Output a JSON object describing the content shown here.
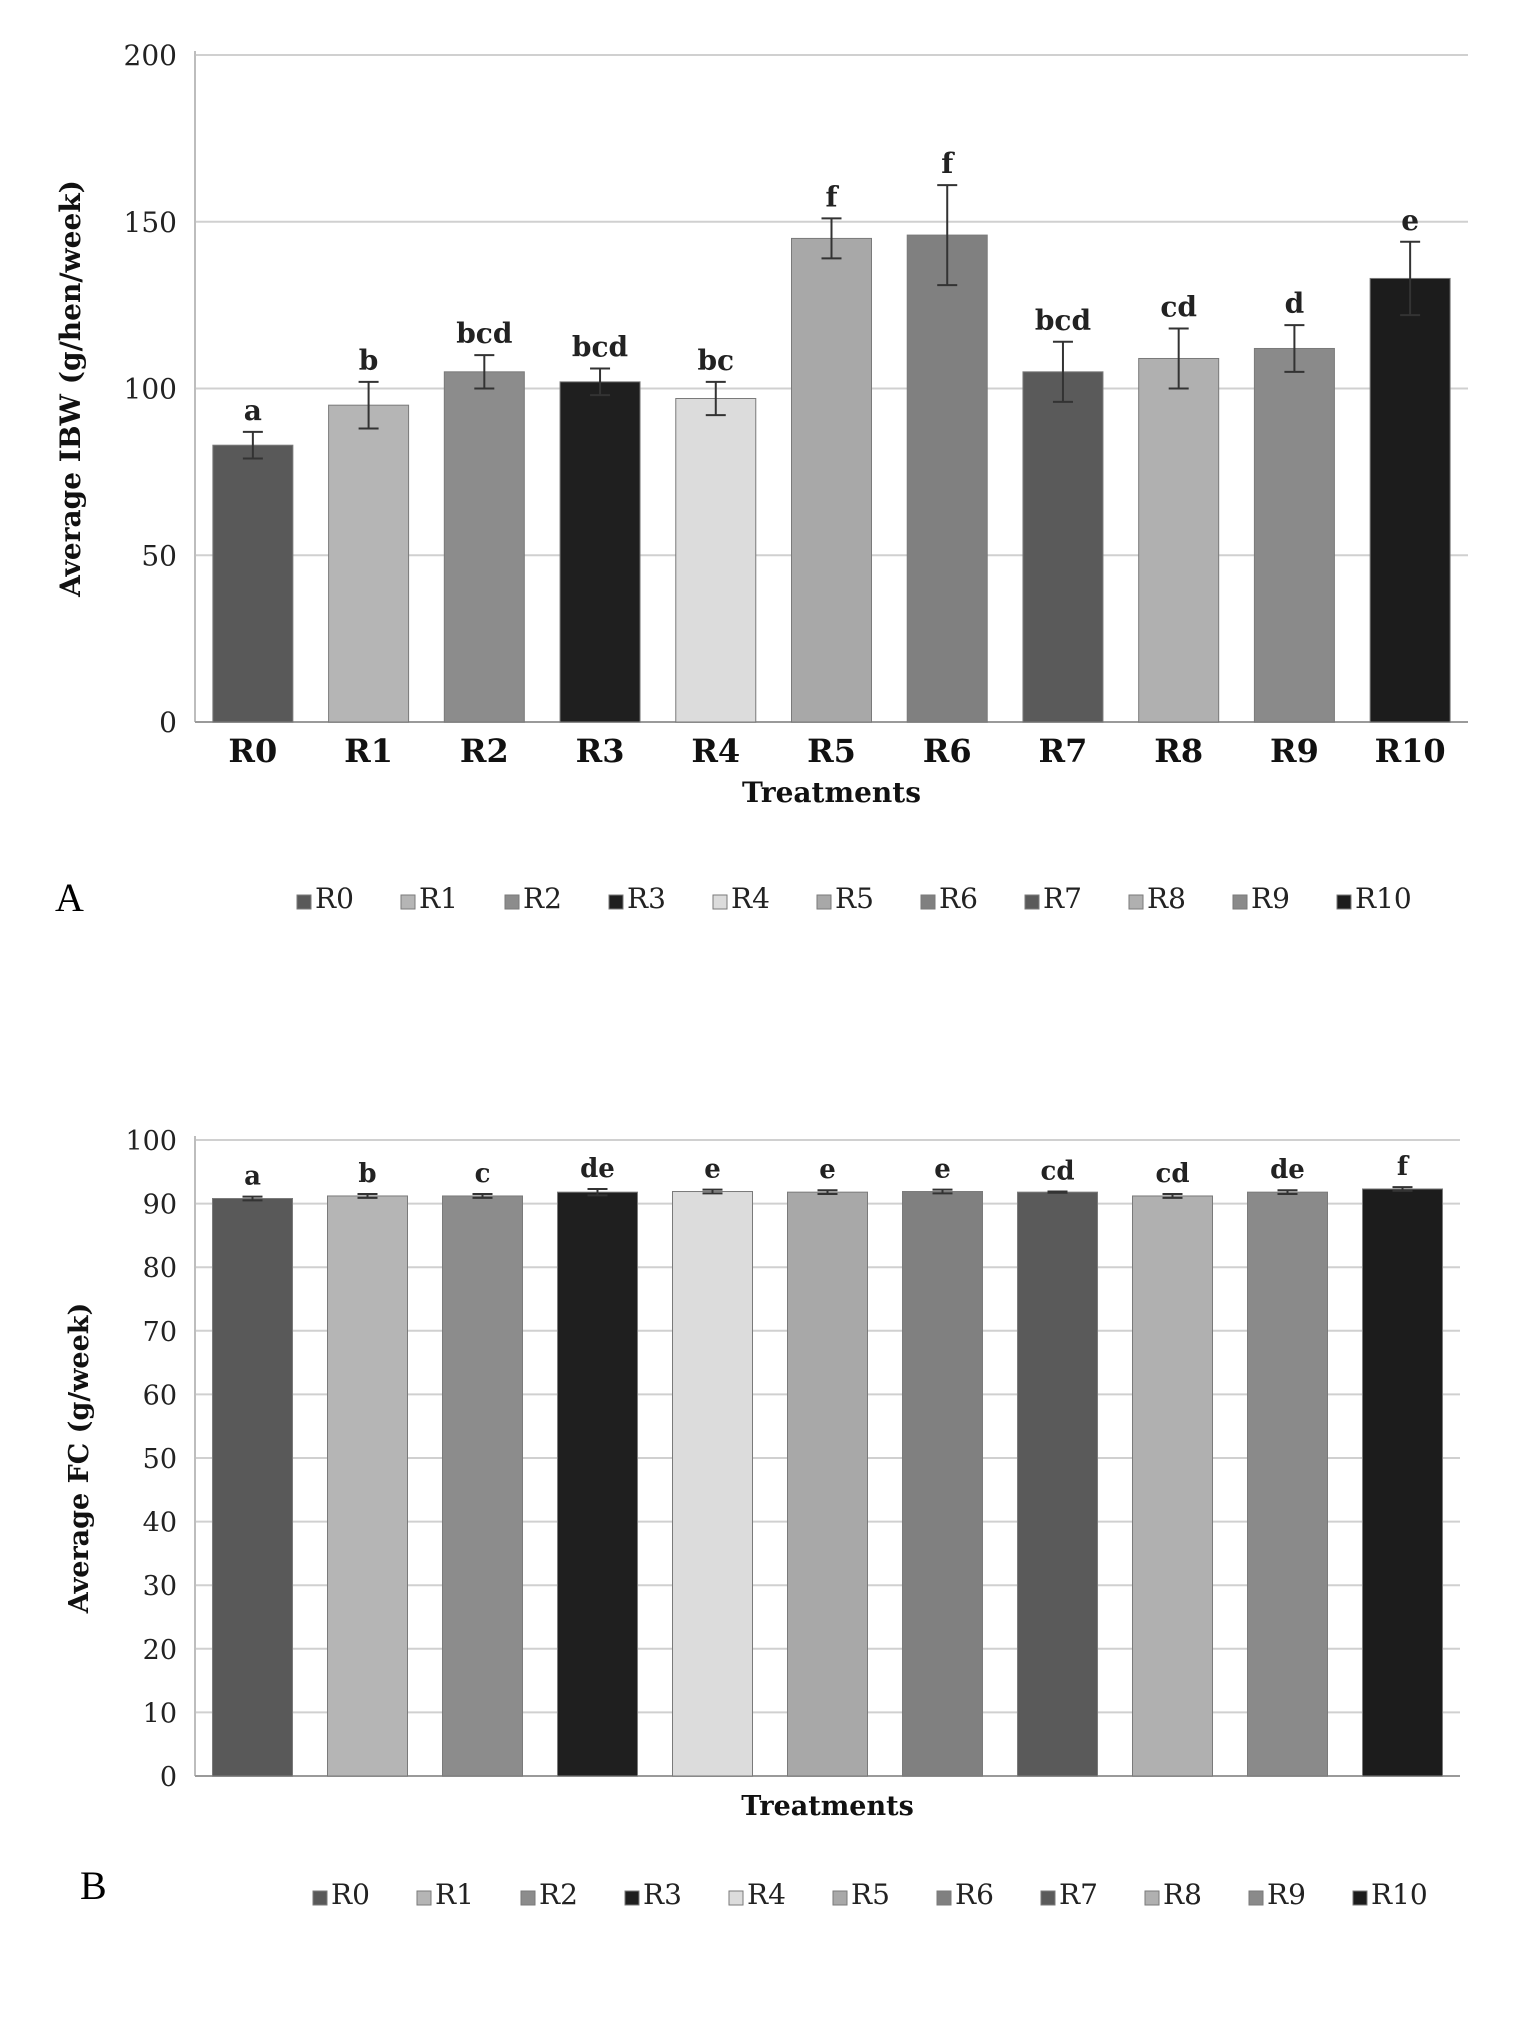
{
  "panels": [
    {
      "letter": "A",
      "chart_data": {
        "type": "bar",
        "categories": [
          "R0",
          "R1",
          "R2",
          "R3",
          "R4",
          "R5",
          "R6",
          "R7",
          "R8",
          "R9",
          "R10"
        ],
        "values": [
          83,
          95,
          105,
          102,
          97,
          145,
          146,
          105,
          109,
          112,
          133
        ],
        "errors": [
          4,
          7,
          5,
          4,
          5,
          6,
          15,
          9,
          9,
          7,
          11
        ],
        "significance_letters": [
          "a",
          "b",
          "bcd",
          "bcd",
          "bc",
          "f",
          "f",
          "bcd",
          "cd",
          "d",
          "e"
        ],
        "xlabel": "Treatments",
        "ylabel": "Average IBW (g/hen/week)",
        "ylim": [
          0,
          200
        ],
        "yticks": [
          0,
          50,
          100,
          150,
          200
        ],
        "grid": true,
        "legend": [
          "R0",
          "R1",
          "R2",
          "R3",
          "R4",
          "R5",
          "R6",
          "R7",
          "R8",
          "R9",
          "R10"
        ],
        "legend_position": "bottom",
        "colors": [
          "#595959",
          "#b5b5b5",
          "#8c8c8c",
          "#1f1f1f",
          "#dcdcdc",
          "#a8a8a8",
          "#808080",
          "#5a5a5a",
          "#b0b0b0",
          "#8a8a8a",
          "#1c1c1c"
        ]
      }
    },
    {
      "letter": "B",
      "chart_data": {
        "type": "bar",
        "categories": [
          "R0",
          "R1",
          "R2",
          "R3",
          "R4",
          "R5",
          "R6",
          "R7",
          "R8",
          "R9",
          "R10"
        ],
        "values": [
          90.8,
          91.2,
          91.2,
          91.8,
          91.9,
          91.8,
          91.9,
          91.8,
          91.2,
          91.8,
          92.3
        ],
        "errors": [
          0.3,
          0.3,
          0.3,
          0.5,
          0.3,
          0.3,
          0.3,
          0.1,
          0.3,
          0.3,
          0.3
        ],
        "significance_letters": [
          "a",
          "b",
          "c",
          "de",
          "e",
          "e",
          "e",
          "cd",
          "cd",
          "de",
          "f"
        ],
        "xlabel": "Treatments",
        "ylabel": "Average FC  (g/week)",
        "ylim": [
          0,
          100
        ],
        "yticks": [
          0,
          10,
          20,
          30,
          40,
          50,
          60,
          70,
          80,
          90,
          100
        ],
        "grid": true,
        "show_category_labels": false,
        "legend": [
          "R0",
          "R1",
          "R2",
          "R3",
          "R4",
          "R5",
          "R6",
          "R7",
          "R8",
          "R9",
          "R10"
        ],
        "legend_position": "bottom",
        "colors": [
          "#595959",
          "#b5b5b5",
          "#8c8c8c",
          "#1f1f1f",
          "#dcdcdc",
          "#a8a8a8",
          "#808080",
          "#5a5a5a",
          "#b0b0b0",
          "#8a8a8a",
          "#1c1c1c"
        ]
      }
    }
  ]
}
